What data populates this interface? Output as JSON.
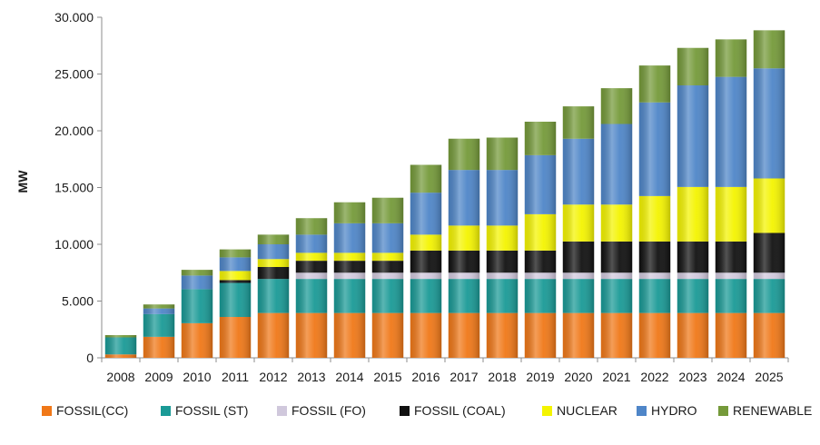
{
  "chart_data": {
    "type": "bar",
    "stacked": true,
    "title": "",
    "xlabel": "",
    "ylabel": "MW",
    "ylim": [
      0,
      30000
    ],
    "y_ticks": [
      "0",
      "5.000",
      "10.000",
      "15.000",
      "20.000",
      "25.000",
      "30.000"
    ],
    "y_tick_values": [
      0,
      5000,
      10000,
      15000,
      20000,
      25000,
      30000
    ],
    "grid": false,
    "legend_position": "bottom",
    "categories": [
      "2008",
      "2009",
      "2010",
      "2011",
      "2012",
      "2013",
      "2014",
      "2015",
      "2016",
      "2017",
      "2018",
      "2019",
      "2020",
      "2021",
      "2022",
      "2023",
      "2024",
      "2025"
    ],
    "series": [
      {
        "name": "FOSSIL(CC)",
        "color": "#f07818",
        "values": [
          300,
          1850,
          3050,
          3600,
          3950,
          3950,
          3950,
          3950,
          3950,
          3950,
          3950,
          3950,
          3950,
          3950,
          3950,
          3950,
          3950,
          3950
        ]
      },
      {
        "name": "FOSSIL (ST)",
        "color": "#1a9a96",
        "values": [
          1500,
          2000,
          3000,
          3000,
          3000,
          3000,
          3000,
          3000,
          3000,
          3000,
          3000,
          3000,
          3000,
          3000,
          3000,
          3000,
          3000,
          3000
        ]
      },
      {
        "name": "FOSSIL (FO)",
        "color": "#d0c8dc",
        "values": [
          0,
          0,
          0,
          0,
          0,
          550,
          550,
          550,
          550,
          550,
          550,
          550,
          550,
          550,
          550,
          550,
          550,
          550
        ]
      },
      {
        "name": "FOSSIL (COAL)",
        "color": "#111111",
        "values": [
          0,
          0,
          0,
          250,
          1050,
          1050,
          1050,
          1050,
          1950,
          1950,
          1950,
          1950,
          2750,
          2750,
          2750,
          2750,
          2750,
          3500
        ]
      },
      {
        "name": "NUCLEAR",
        "color": "#f4f400",
        "values": [
          0,
          0,
          0,
          800,
          700,
          700,
          700,
          700,
          1400,
          2200,
          2200,
          3200,
          3250,
          3250,
          4000,
          4800,
          4800,
          4800
        ]
      },
      {
        "name": "HYDRO",
        "color": "#4f86c8",
        "values": [
          0,
          500,
          1200,
          1200,
          1300,
          1600,
          2600,
          2600,
          3700,
          4900,
          4900,
          5200,
          5800,
          7100,
          8250,
          8950,
          9700,
          9700
        ]
      },
      {
        "name": "RENEWABLE",
        "color": "#759a3a",
        "values": [
          200,
          350,
          500,
          700,
          850,
          1450,
          1850,
          2250,
          2450,
          2750,
          2850,
          2950,
          2850,
          3150,
          3250,
          3300,
          3300,
          3350
        ]
      }
    ]
  }
}
